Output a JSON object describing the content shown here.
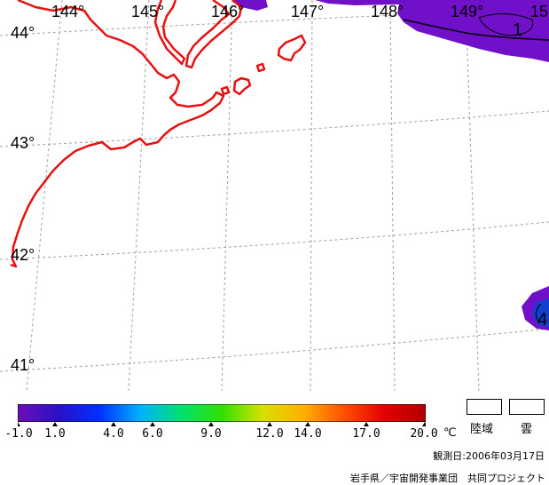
{
  "map": {
    "longitude_labels": [
      "144°",
      "145°",
      "146°",
      "147°",
      "148°",
      "149°",
      "15"
    ],
    "latitude_labels": [
      "44°",
      "43°",
      "42°",
      "41°"
    ],
    "contour_labels": [
      "1",
      "4"
    ],
    "colors": {
      "coastline": "#e81010",
      "graticule": "#a0a0a0",
      "sst_cold": "#7010c8",
      "sst_blue": "#1040d0",
      "contour": "#000000"
    }
  },
  "colorbar": {
    "tick_labels": [
      "-1.0",
      "1.0",
      "4.0",
      "6.0",
      "9.0",
      "12.0",
      "14.0",
      "17.0",
      "20.0"
    ],
    "unit": "℃",
    "gradient_colors": [
      "#6a0fb4",
      "#2a10c8",
      "#0030ff",
      "#00b0ff",
      "#00e070",
      "#30e000",
      "#d8e000",
      "#ffb000",
      "#ff5000",
      "#e00000",
      "#b00000"
    ]
  },
  "legend": {
    "land_label": "陸域",
    "cloud_label": "雲"
  },
  "footer": {
    "observation_date": "観測日:2006年03月17日",
    "credit": "岩手県／宇宙開発事業団　共同プロジェクト"
  }
}
